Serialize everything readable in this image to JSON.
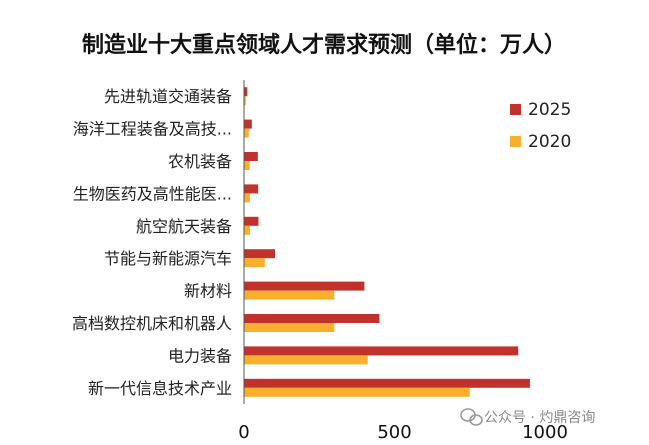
{
  "chart_data": {
    "type": "bar",
    "orientation": "horizontal",
    "title": "制造业十大重点领域人才需求预测（单位：万人）",
    "categories": [
      "新一代信息技术产业",
      "电力装备",
      "高档数控机床和机器人",
      "新材料",
      "节能与新能源汽车",
      "航空航天装备",
      "生物医药及高性能医...",
      "农机装备",
      "海洋工程装备及高技...",
      "先进轨道交通装备"
    ],
    "series": [
      {
        "name": "2025",
        "color": "#c0322b",
        "values": [
          950,
          911,
          450,
          400,
          103,
          48,
          47,
          46,
          26,
          11
        ]
      },
      {
        "name": "2020",
        "color": "#f7b02e",
        "values": [
          750,
          411,
          300,
          300,
          69,
          20,
          20,
          19,
          16,
          6
        ]
      }
    ],
    "x_ticks": [
      "0",
      "500",
      "1000"
    ],
    "xlim": [
      0,
      1000
    ],
    "legend_position": "right",
    "grid": false
  },
  "watermark": "公众号 · 灼鼎咨询"
}
